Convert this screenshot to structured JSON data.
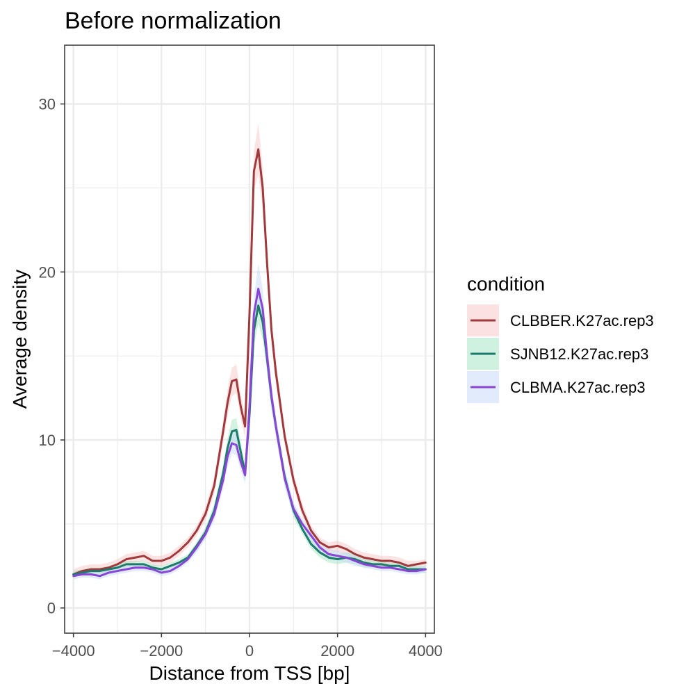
{
  "chart_data": {
    "type": "line",
    "title": "Before normalization",
    "xlabel": "Distance from TSS [bp]",
    "ylabel": "Average density",
    "xlim": [
      -4200,
      4200
    ],
    "ylim": [
      -1.5,
      33.5
    ],
    "x_ticks": [
      -4000,
      -2000,
      0,
      2000,
      4000
    ],
    "x_tick_labels": [
      "−4000",
      "−2000",
      "0",
      "2000",
      "4000"
    ],
    "y_ticks": [
      0,
      10,
      20,
      30
    ],
    "y_tick_labels": [
      "0",
      "10",
      "20",
      "30"
    ],
    "grid": true,
    "legend": {
      "title": "condition",
      "position": "right"
    },
    "series": [
      {
        "name": "CLBBER.K27ac.rep3",
        "color": "#a0393b",
        "band_color": "#f8c8c8",
        "x": [
          -4000,
          -3800,
          -3600,
          -3400,
          -3200,
          -3000,
          -2800,
          -2600,
          -2400,
          -2200,
          -2000,
          -1800,
          -1600,
          -1400,
          -1200,
          -1000,
          -800,
          -600,
          -500,
          -400,
          -300,
          -200,
          -100,
          0,
          100,
          200,
          300,
          400,
          500,
          600,
          800,
          1000,
          1200,
          1400,
          1600,
          1800,
          2000,
          2200,
          2400,
          2600,
          2800,
          3000,
          3200,
          3400,
          3600,
          3800,
          4000
        ],
        "y": [
          2.0,
          2.2,
          2.3,
          2.3,
          2.4,
          2.6,
          2.9,
          3.0,
          3.1,
          2.8,
          2.8,
          3.0,
          3.4,
          3.9,
          4.6,
          5.6,
          7.3,
          10.5,
          12.2,
          13.5,
          13.6,
          12.0,
          10.8,
          17.5,
          26.0,
          27.3,
          25.0,
          20.5,
          16.5,
          14.0,
          10.2,
          7.6,
          5.8,
          4.6,
          3.9,
          3.6,
          3.7,
          3.5,
          3.2,
          3.0,
          2.9,
          2.8,
          2.8,
          2.7,
          2.5,
          2.6,
          2.7
        ],
        "lower": [
          1.8,
          2.0,
          2.1,
          2.1,
          2.2,
          2.4,
          2.6,
          2.7,
          2.8,
          2.5,
          2.5,
          2.7,
          3.1,
          3.6,
          4.3,
          5.2,
          6.8,
          9.8,
          11.4,
          12.6,
          12.8,
          11.3,
          10.1,
          16.5,
          24.8,
          25.8,
          23.7,
          19.5,
          15.7,
          13.3,
          9.7,
          7.2,
          5.4,
          4.3,
          3.6,
          3.3,
          3.3,
          3.2,
          2.9,
          2.7,
          2.6,
          2.5,
          2.5,
          2.4,
          2.3,
          2.4,
          2.5
        ],
        "upper": [
          2.3,
          2.5,
          2.6,
          2.6,
          2.7,
          2.9,
          3.2,
          3.3,
          3.4,
          3.1,
          3.1,
          3.3,
          3.7,
          4.2,
          4.9,
          6.0,
          7.8,
          11.1,
          13.0,
          14.3,
          14.5,
          12.7,
          11.5,
          18.5,
          27.2,
          28.8,
          26.3,
          21.5,
          17.3,
          14.7,
          10.7,
          8.0,
          6.2,
          4.9,
          4.2,
          3.9,
          4.0,
          3.8,
          3.5,
          3.3,
          3.2,
          3.1,
          3.1,
          3.0,
          2.8,
          2.8,
          2.9
        ]
      },
      {
        "name": "SJNB12.K27ac.rep3",
        "color": "#1f7a6e",
        "band_color": "#a8e6c4",
        "x": [
          -4000,
          -3800,
          -3600,
          -3400,
          -3200,
          -3000,
          -2800,
          -2600,
          -2400,
          -2200,
          -2000,
          -1800,
          -1600,
          -1400,
          -1200,
          -1000,
          -800,
          -600,
          -500,
          -400,
          -300,
          -200,
          -100,
          0,
          100,
          200,
          300,
          400,
          500,
          600,
          800,
          1000,
          1200,
          1400,
          1600,
          1800,
          2000,
          2200,
          2400,
          2600,
          2800,
          3000,
          3200,
          3400,
          3600,
          3800,
          4000
        ],
        "y": [
          2.0,
          2.1,
          2.2,
          2.2,
          2.3,
          2.4,
          2.6,
          2.6,
          2.6,
          2.4,
          2.3,
          2.5,
          2.7,
          3.0,
          3.7,
          4.5,
          5.8,
          8.0,
          9.5,
          10.5,
          10.6,
          9.3,
          8.0,
          11.5,
          16.5,
          18.0,
          17.0,
          14.8,
          12.5,
          10.8,
          7.8,
          5.8,
          4.7,
          3.8,
          3.3,
          3.0,
          2.9,
          3.0,
          2.9,
          2.7,
          2.6,
          2.6,
          2.5,
          2.5,
          2.3,
          2.3,
          2.3
        ],
        "lower": [
          1.9,
          2.0,
          2.0,
          2.0,
          2.1,
          2.2,
          2.4,
          2.4,
          2.4,
          2.2,
          2.1,
          2.3,
          2.5,
          2.8,
          3.4,
          4.2,
          5.4,
          7.5,
          8.9,
          9.8,
          9.9,
          8.7,
          7.5,
          10.7,
          15.6,
          16.9,
          16.0,
          14.0,
          11.8,
          10.2,
          7.3,
          5.4,
          4.4,
          3.5,
          3.0,
          2.7,
          2.6,
          2.7,
          2.6,
          2.4,
          2.4,
          2.4,
          2.3,
          2.3,
          2.1,
          2.1,
          2.1
        ],
        "upper": [
          2.2,
          2.3,
          2.4,
          2.4,
          2.5,
          2.6,
          2.8,
          2.8,
          2.8,
          2.6,
          2.5,
          2.7,
          2.9,
          3.2,
          3.9,
          4.8,
          6.2,
          8.5,
          10.1,
          11.2,
          11.3,
          9.9,
          8.5,
          12.3,
          17.4,
          19.0,
          18.0,
          15.6,
          13.2,
          11.4,
          8.3,
          6.2,
          5.0,
          4.1,
          3.6,
          3.3,
          3.2,
          3.3,
          3.2,
          3.0,
          2.9,
          2.8,
          2.7,
          2.7,
          2.5,
          2.5,
          2.5
        ]
      },
      {
        "name": "CLBMA.K27ac.rep3",
        "color": "#8a44d6",
        "band_color": "#c8daf8",
        "x": [
          -4000,
          -3800,
          -3600,
          -3400,
          -3200,
          -3000,
          -2800,
          -2600,
          -2400,
          -2200,
          -2000,
          -1800,
          -1600,
          -1400,
          -1200,
          -1000,
          -800,
          -600,
          -500,
          -400,
          -300,
          -200,
          -100,
          0,
          100,
          200,
          300,
          400,
          500,
          600,
          800,
          1000,
          1200,
          1400,
          1600,
          1800,
          2000,
          2200,
          2400,
          2600,
          2800,
          3000,
          3200,
          3400,
          3600,
          3800,
          4000
        ],
        "y": [
          1.9,
          2.0,
          2.0,
          1.9,
          2.1,
          2.2,
          2.3,
          2.4,
          2.4,
          2.3,
          2.1,
          2.2,
          2.5,
          2.9,
          3.6,
          4.4,
          5.6,
          7.6,
          9.0,
          9.8,
          9.7,
          8.7,
          7.9,
          12.0,
          17.5,
          19.0,
          17.8,
          15.0,
          12.6,
          10.8,
          7.7,
          5.9,
          5.0,
          4.3,
          3.6,
          3.2,
          3.1,
          3.0,
          2.8,
          2.6,
          2.5,
          2.4,
          2.4,
          2.3,
          2.2,
          2.2,
          2.3
        ],
        "lower": [
          1.7,
          1.8,
          1.8,
          1.7,
          1.9,
          2.0,
          2.1,
          2.2,
          2.2,
          2.1,
          1.9,
          2.0,
          2.3,
          2.7,
          3.3,
          4.1,
          5.2,
          7.1,
          8.4,
          9.2,
          9.1,
          8.2,
          7.4,
          11.2,
          16.5,
          17.9,
          16.8,
          14.2,
          11.9,
          10.2,
          7.2,
          5.5,
          4.7,
          4.0,
          3.3,
          2.9,
          2.8,
          2.7,
          2.5,
          2.4,
          2.3,
          2.2,
          2.2,
          2.1,
          2.0,
          2.0,
          2.1
        ],
        "upper": [
          2.1,
          2.2,
          2.2,
          2.1,
          2.3,
          2.4,
          2.5,
          2.6,
          2.6,
          2.5,
          2.3,
          2.4,
          2.7,
          3.1,
          3.9,
          4.7,
          6.0,
          8.1,
          9.6,
          10.4,
          10.3,
          9.2,
          8.4,
          12.8,
          18.5,
          20.5,
          19.0,
          15.9,
          13.3,
          11.4,
          8.2,
          6.3,
          5.3,
          4.6,
          3.9,
          3.5,
          3.4,
          3.3,
          3.1,
          2.8,
          2.7,
          2.6,
          2.6,
          2.5,
          2.4,
          2.4,
          2.5
        ]
      }
    ]
  }
}
